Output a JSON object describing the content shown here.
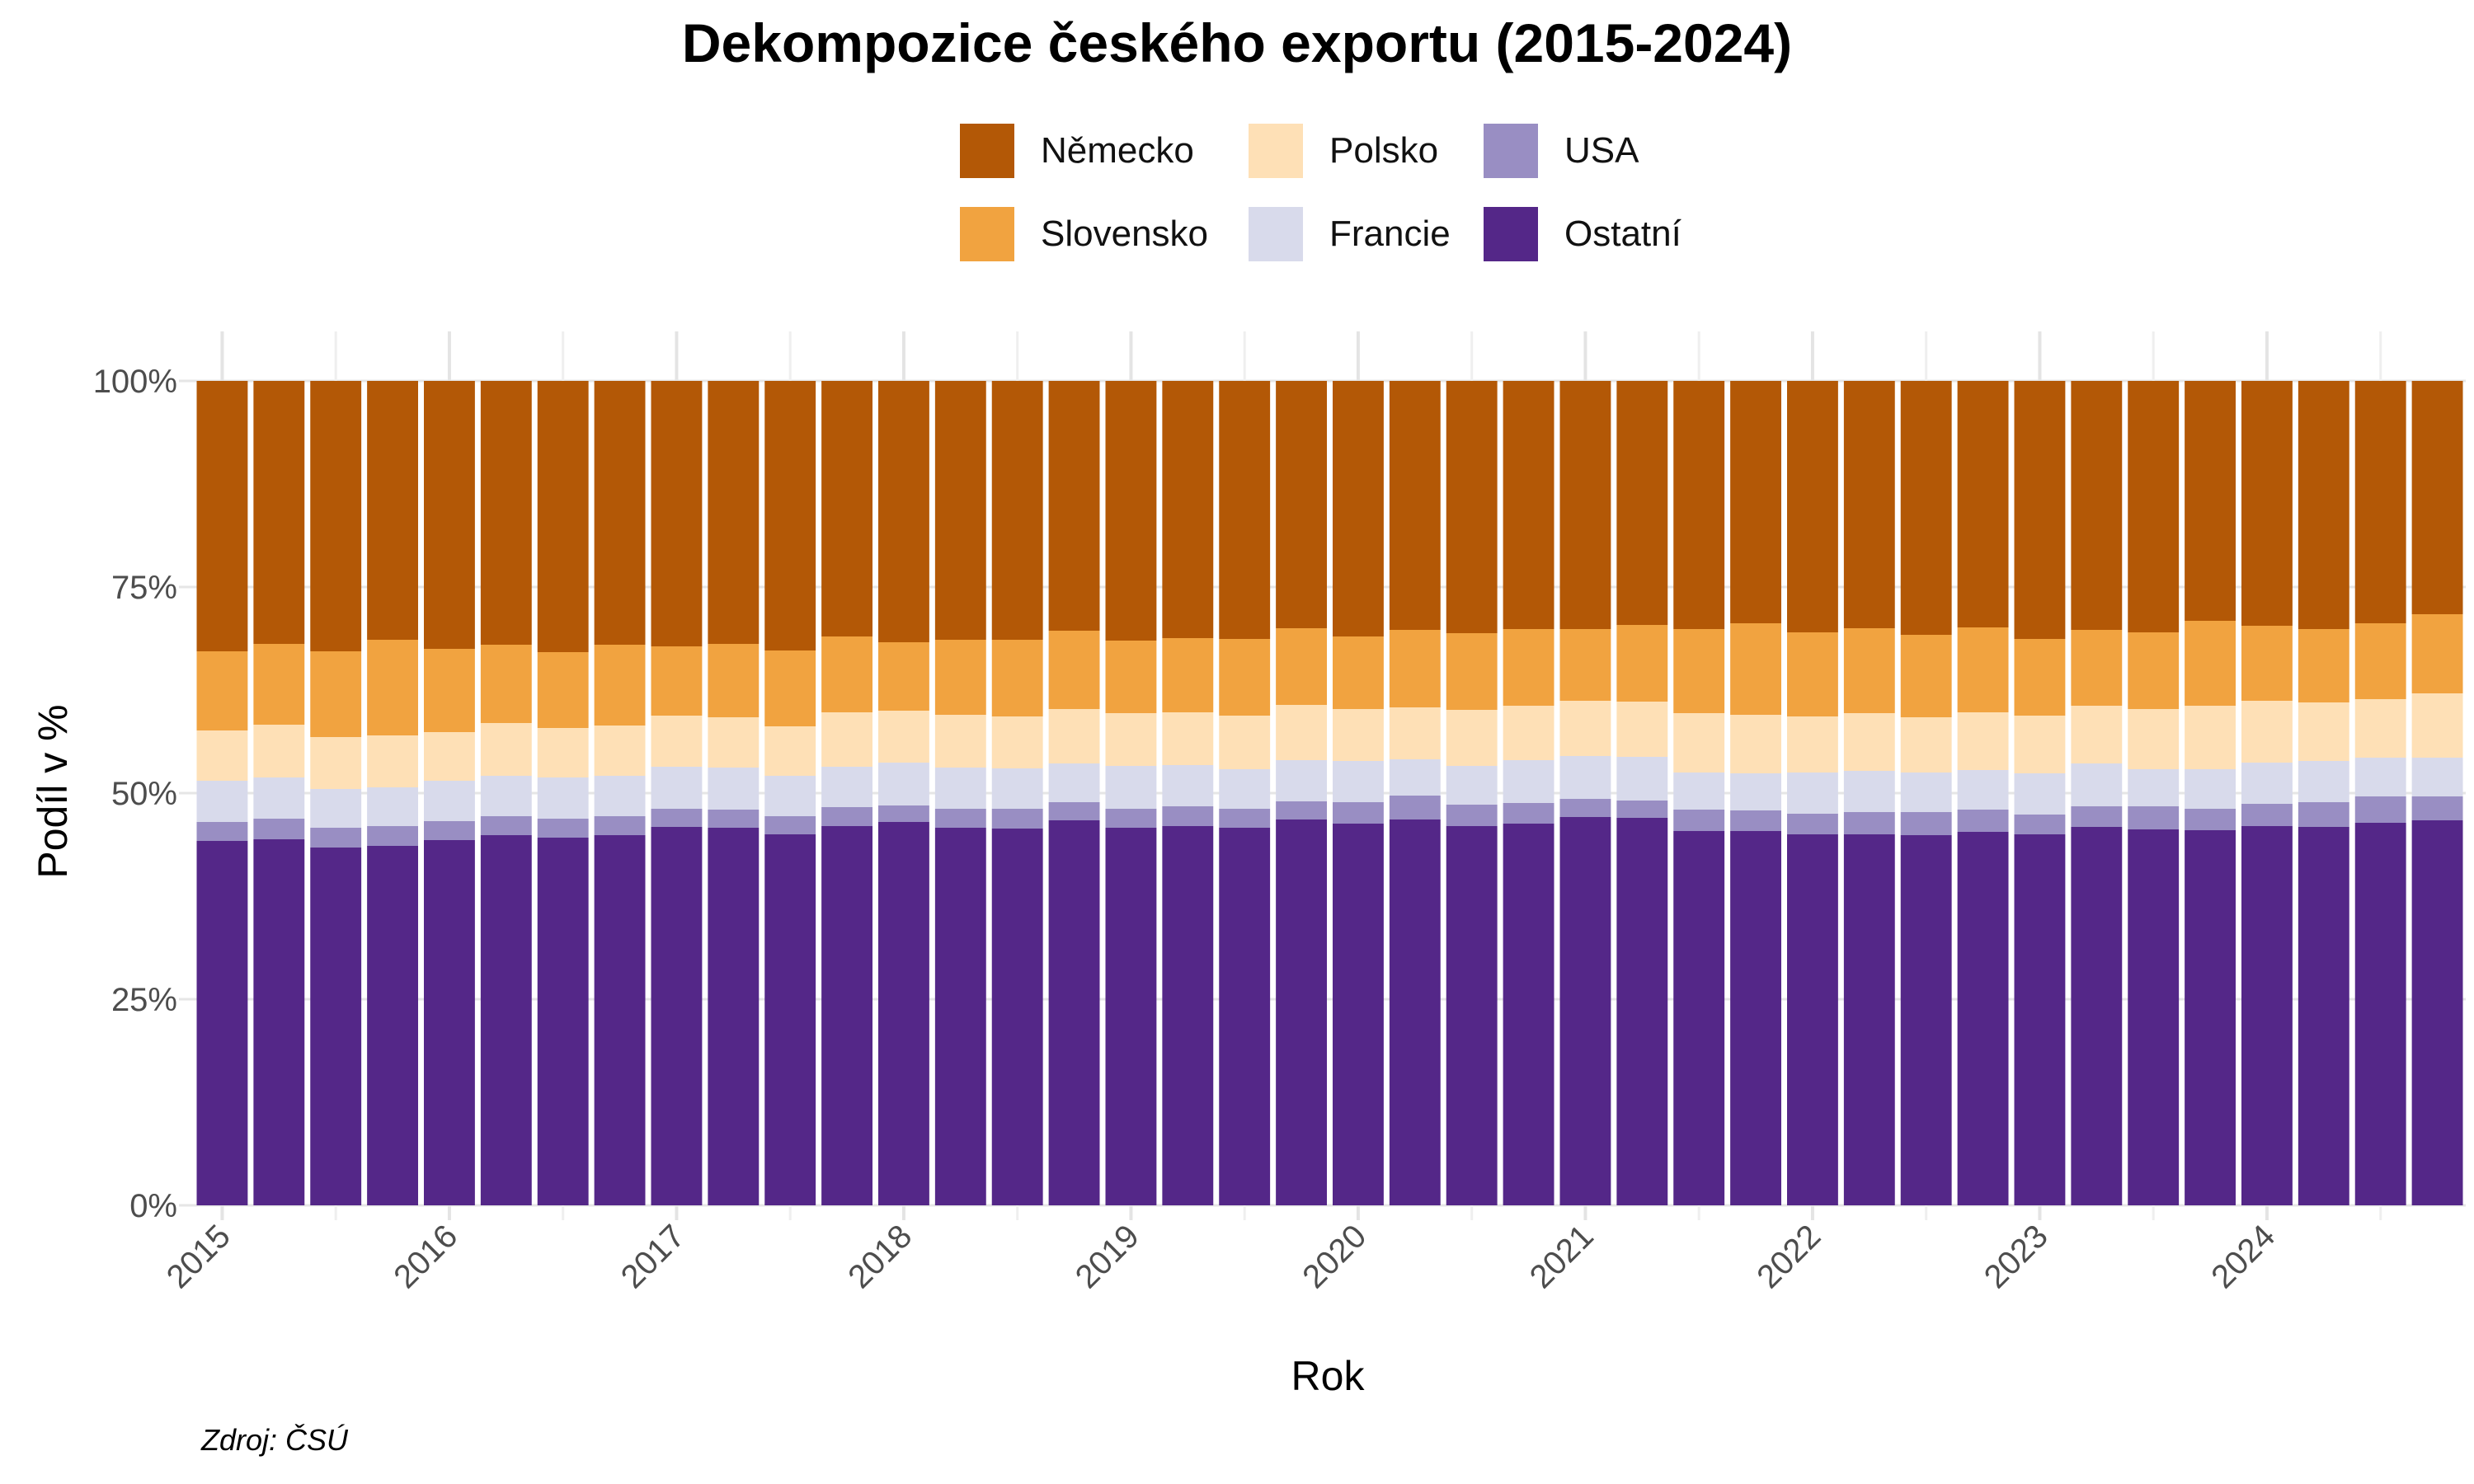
{
  "chart_data": {
    "type": "bar",
    "stacked": true,
    "title": "Dekompozice českého exportu (2015-2024)",
    "xlabel": "Rok",
    "ylabel": "Podíl v %",
    "caption": "Zdroj: ČSÚ",
    "ylim": [
      0,
      100
    ],
    "y_ticks": [
      "0%",
      "25%",
      "50%",
      "75%",
      "100%"
    ],
    "x_tick_labels": [
      "2015",
      "2016",
      "2017",
      "2018",
      "2019",
      "2020",
      "2021",
      "2022",
      "2023",
      "2024"
    ],
    "periods_per_year": 4,
    "grid": true,
    "legend_position": "top",
    "stack_order_bottom_to_top": [
      "Ostatní",
      "USA",
      "Francie",
      "Polsko",
      "Slovensko",
      "Německo"
    ],
    "series": [
      {
        "name": "Ostatní",
        "color": "#542788",
        "values": [
          44.2,
          44.4,
          43.4,
          43.6,
          44.3,
          44.9,
          44.6,
          44.9,
          45.9,
          45.8,
          45.0,
          46.0,
          46.5,
          45.8,
          45.7,
          46.7,
          45.8,
          46.0,
          45.8,
          46.8,
          46.3,
          46.8,
          46.0,
          46.3,
          47.1,
          47.0,
          45.4,
          45.4,
          45.0,
          45.0,
          44.9,
          45.3,
          45.0,
          45.9,
          45.6,
          45.5,
          46.0,
          45.9,
          46.4,
          46.7
        ]
      },
      {
        "name": "USA",
        "color": "#998ec3",
        "values": [
          2.3,
          2.5,
          2.4,
          2.4,
          2.3,
          2.3,
          2.3,
          2.3,
          2.2,
          2.2,
          2.2,
          2.3,
          2.0,
          2.3,
          2.4,
          2.2,
          2.3,
          2.4,
          2.3,
          2.2,
          2.6,
          2.9,
          2.6,
          2.5,
          2.2,
          2.1,
          2.6,
          2.5,
          2.5,
          2.7,
          2.8,
          2.7,
          2.4,
          2.5,
          2.8,
          2.6,
          2.7,
          3.0,
          3.2,
          2.9
        ]
      },
      {
        "name": "Francie",
        "color": "#d8daeb",
        "values": [
          5.0,
          5.0,
          4.7,
          4.7,
          4.9,
          4.9,
          5.0,
          4.9,
          5.1,
          5.1,
          4.9,
          4.9,
          5.2,
          5.0,
          4.9,
          4.7,
          5.2,
          5.0,
          4.8,
          5.0,
          5.0,
          4.4,
          4.7,
          5.2,
          5.2,
          5.3,
          4.5,
          4.5,
          5.0,
          5.0,
          4.8,
          4.8,
          5.0,
          5.2,
          4.5,
          4.8,
          5.0,
          5.0,
          4.7,
          4.7
        ]
      },
      {
        "name": "Polsko",
        "color": "#fee0b6",
        "values": [
          6.1,
          6.4,
          6.3,
          6.3,
          5.9,
          6.4,
          6.0,
          6.1,
          6.2,
          6.1,
          6.0,
          6.6,
          6.3,
          6.4,
          6.3,
          6.6,
          6.4,
          6.4,
          6.5,
          6.7,
          6.3,
          6.3,
          6.8,
          6.6,
          6.7,
          6.7,
          7.2,
          7.1,
          6.8,
          7.0,
          6.7,
          7.0,
          7.0,
          7.0,
          7.3,
          7.7,
          7.5,
          7.1,
          7.1,
          7.8
        ]
      },
      {
        "name": "Slovensko",
        "color": "#f1a340",
        "values": [
          9.6,
          9.8,
          10.4,
          11.6,
          10.1,
          9.5,
          9.2,
          9.8,
          8.4,
          8.9,
          9.2,
          9.2,
          8.3,
          9.1,
          9.3,
          9.5,
          8.8,
          9.0,
          9.3,
          9.3,
          8.8,
          9.4,
          9.3,
          9.3,
          8.7,
          9.3,
          10.2,
          11.1,
          10.2,
          10.3,
          10.0,
          10.3,
          9.3,
          9.2,
          9.3,
          10.3,
          9.1,
          8.9,
          9.2,
          9.6
        ]
      },
      {
        "name": "Německo",
        "color": "#b35806",
        "values": [
          32.8,
          31.9,
          32.8,
          31.4,
          32.5,
          32.0,
          32.9,
          32.0,
          32.2,
          31.9,
          32.7,
          31.0,
          31.7,
          31.4,
          31.4,
          30.3,
          31.5,
          31.2,
          31.3,
          30.0,
          31.0,
          30.2,
          30.6,
          30.1,
          30.1,
          29.6,
          30.1,
          29.4,
          30.5,
          30.0,
          30.8,
          29.9,
          31.3,
          30.2,
          30.5,
          29.1,
          29.7,
          30.1,
          29.4,
          28.3
        ]
      }
    ]
  }
}
